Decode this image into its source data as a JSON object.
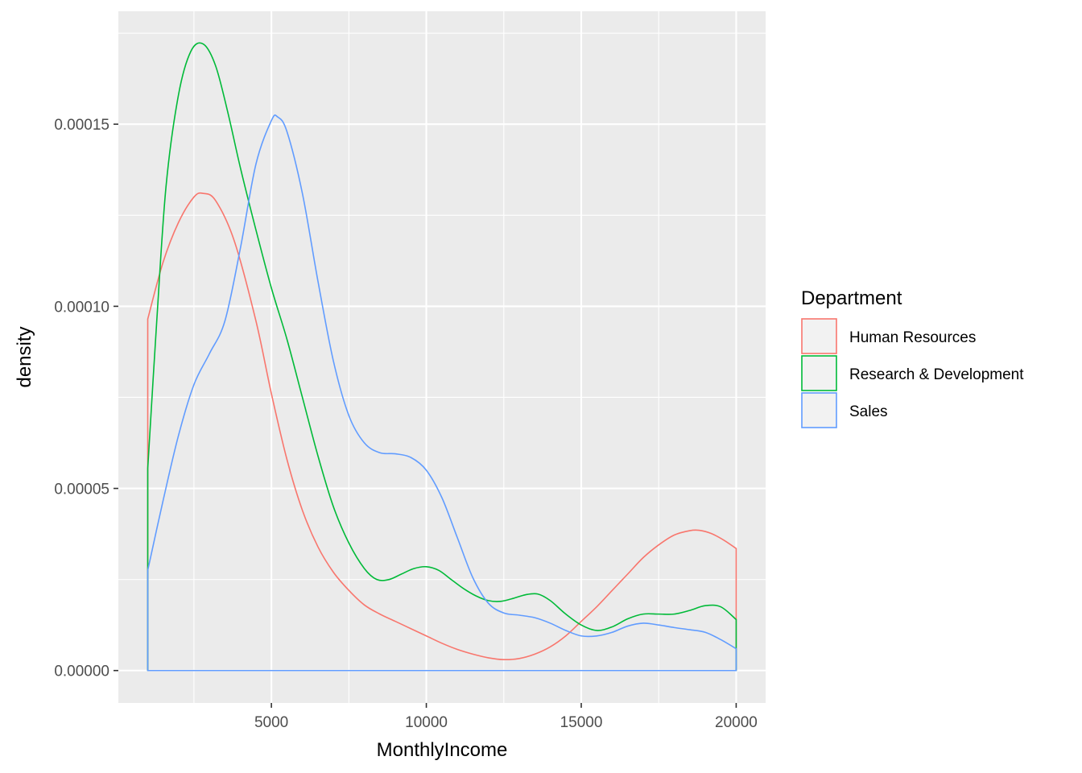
{
  "chart_data": {
    "type": "area",
    "xlabel": "MonthlyIncome",
    "ylabel": "density",
    "xlim": [
      1009,
      20000
    ],
    "ylim": [
      0,
      0.000172
    ],
    "x_ticks": [
      5000,
      10000,
      15000,
      20000
    ],
    "x_tick_labels": [
      "5000",
      "10000",
      "15000",
      "20000"
    ],
    "y_ticks": [
      0,
      5e-05,
      0.0001,
      0.00015
    ],
    "y_tick_labels": [
      "0.00000",
      "0.00005",
      "0.00010",
      "0.00015"
    ],
    "grid": true,
    "legend": {
      "title": "Department",
      "position": "right"
    },
    "series": [
      {
        "name": "Human Resources",
        "color": "#F8766D",
        "x": [
          1009,
          1500,
          2000,
          2500,
          2800,
          3200,
          3800,
          4500,
          5000,
          5500,
          6000,
          6500,
          7000,
          7500,
          8000,
          8500,
          9000,
          9500,
          10000,
          10500,
          11000,
          11500,
          12000,
          12500,
          13000,
          13500,
          14000,
          14500,
          15000,
          15500,
          16000,
          16500,
          17000,
          17500,
          18000,
          18500,
          18800,
          19200,
          19600,
          20000
        ],
        "y": [
          9.65e-05,
          0.000112,
          0.000123,
          0.00013,
          0.000131,
          0.000129,
          0.000118,
          9.6e-05,
          7.6e-05,
          5.8e-05,
          4.4e-05,
          3.4e-05,
          2.7e-05,
          2.2e-05,
          1.8e-05,
          1.55e-05,
          1.35e-05,
          1.15e-05,
          9.5e-06,
          7.5e-06,
          5.8e-06,
          4.5e-06,
          3.5e-06,
          3e-06,
          3.3e-06,
          4.5e-06,
          6.5e-06,
          9.5e-06,
          1.35e-05,
          1.75e-05,
          2.2e-05,
          2.65e-05,
          3.1e-05,
          3.45e-05,
          3.72e-05,
          3.84e-05,
          3.85e-05,
          3.76e-05,
          3.58e-05,
          3.35e-05
        ]
      },
      {
        "name": "Research & Development",
        "color": "#00BA38",
        "x": [
          1009,
          1300,
          1600,
          2000,
          2400,
          2800,
          3200,
          3600,
          4000,
          4500,
          5000,
          5500,
          6000,
          6500,
          7000,
          7500,
          8000,
          8400,
          8800,
          9200,
          9600,
          10000,
          10400,
          10800,
          11200,
          11600,
          12000,
          12400,
          12800,
          13200,
          13600,
          14000,
          14500,
          15000,
          15500,
          16000,
          16500,
          17000,
          17500,
          18000,
          18500,
          19000,
          19500,
          20000
        ],
        "y": [
          5.55e-05,
          9.6e-05,
          0.000133,
          0.000158,
          0.00017,
          0.000172,
          0.000166,
          0.000153,
          0.000138,
          0.000121,
          0.000105,
          9.1e-05,
          7.5e-05,
          5.9e-05,
          4.5e-05,
          3.5e-05,
          2.8e-05,
          2.5e-05,
          2.5e-05,
          2.65e-05,
          2.8e-05,
          2.85e-05,
          2.75e-05,
          2.5e-05,
          2.25e-05,
          2.05e-05,
          1.92e-05,
          1.9e-05,
          1.98e-05,
          2.08e-05,
          2.1e-05,
          1.92e-05,
          1.55e-05,
          1.25e-05,
          1.1e-05,
          1.2e-05,
          1.42e-05,
          1.55e-05,
          1.55e-05,
          1.55e-05,
          1.65e-05,
          1.78e-05,
          1.75e-05,
          1.4e-05
        ]
      },
      {
        "name": "Sales",
        "color": "#619CFF",
        "x": [
          1009,
          1500,
          2000,
          2500,
          3000,
          3500,
          4000,
          4500,
          5000,
          5200,
          5500,
          6000,
          6500,
          7000,
          7500,
          8000,
          8500,
          9000,
          9500,
          10000,
          10500,
          11000,
          11500,
          12000,
          12500,
          13000,
          13500,
          14000,
          14500,
          15000,
          15500,
          16000,
          16500,
          17000,
          17500,
          18000,
          18500,
          19000,
          19500,
          20000
        ],
        "y": [
          2.75e-05,
          4.65e-05,
          6.45e-05,
          7.85e-05,
          8.7e-05,
          9.6e-05,
          0.000116,
          0.000139,
          0.000151,
          0.000152,
          0.000148,
          0.000131,
          0.000107,
          8.5e-05,
          7e-05,
          6.25e-05,
          5.98e-05,
          5.95e-05,
          5.85e-05,
          5.5e-05,
          4.75e-05,
          3.65e-05,
          2.55e-05,
          1.85e-05,
          1.58e-05,
          1.52e-05,
          1.45e-05,
          1.3e-05,
          1.1e-05,
          9.5e-06,
          9.5e-06,
          1.05e-05,
          1.22e-05,
          1.3e-05,
          1.25e-05,
          1.18e-05,
          1.12e-05,
          1.05e-05,
          8.5e-06,
          6e-06
        ]
      }
    ]
  }
}
